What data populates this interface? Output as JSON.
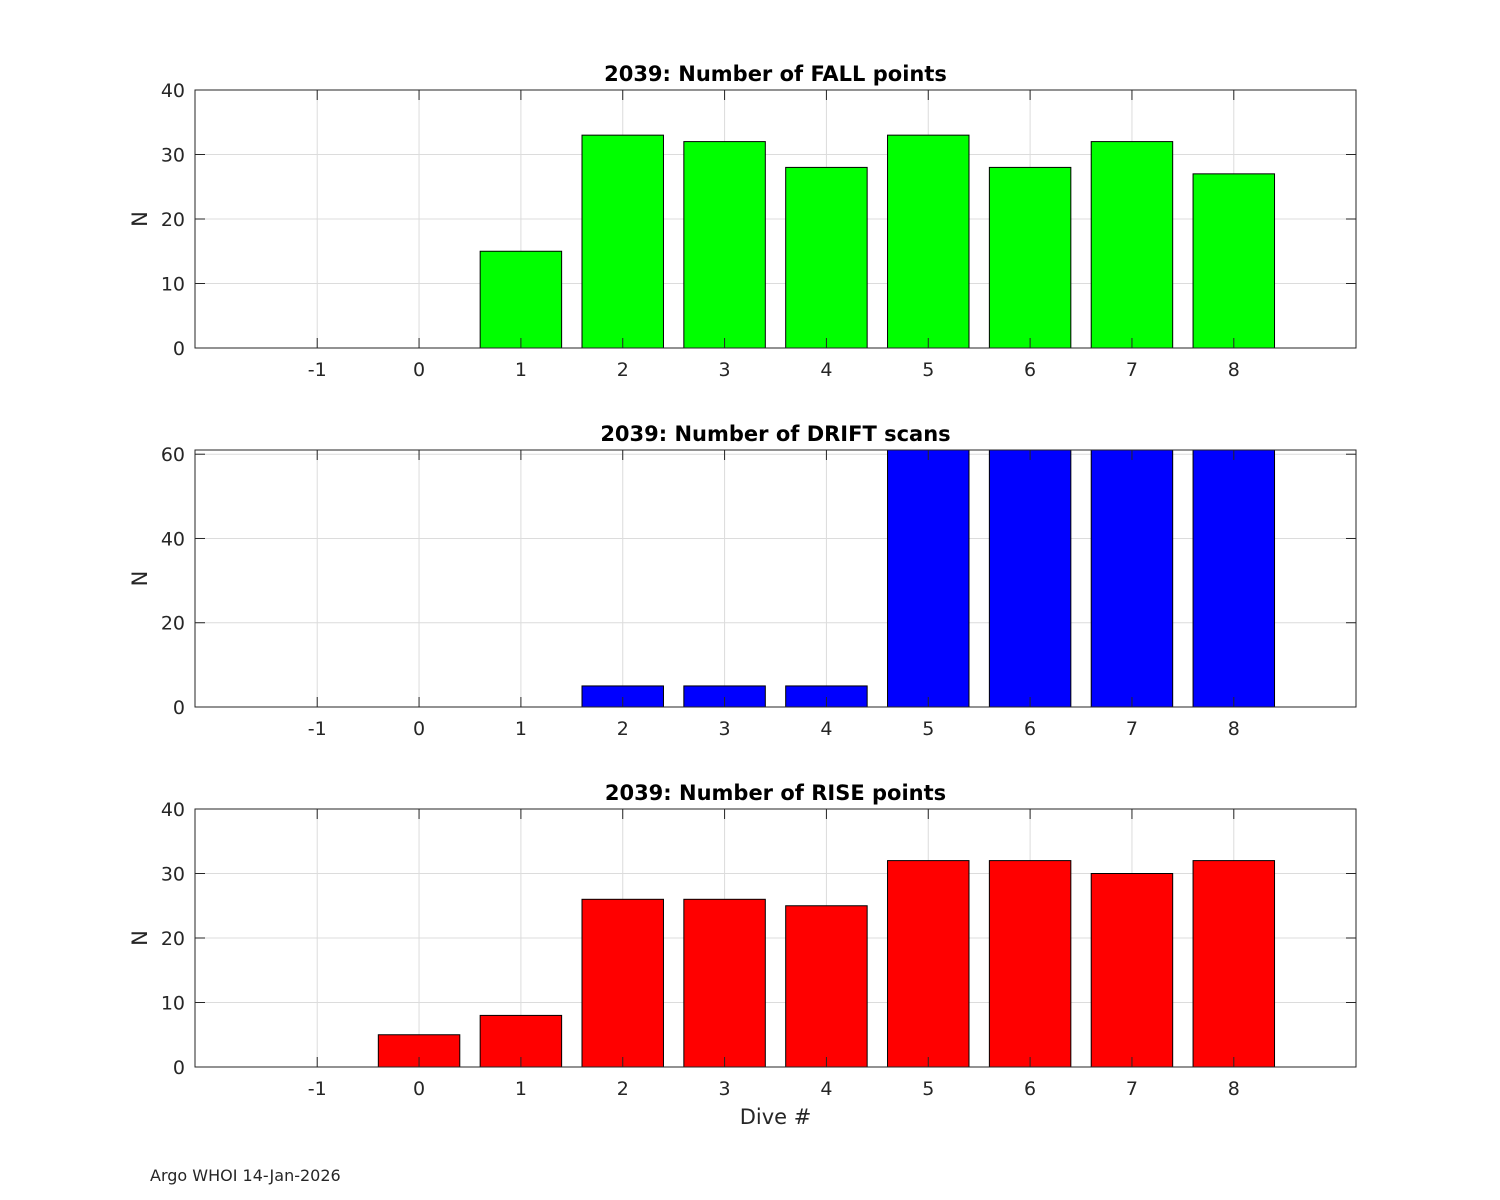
{
  "figure": {
    "footer": "Argo WHOI 14-Jan-2026"
  },
  "chart_data": [
    {
      "type": "bar",
      "title": "2039: Number of FALL points",
      "xlabel": "",
      "ylabel": "N",
      "categories": [
        -1,
        0,
        1,
        2,
        3,
        4,
        5,
        6,
        7,
        8
      ],
      "values": [
        0,
        0,
        15,
        33,
        32,
        28,
        33,
        28,
        32,
        27
      ],
      "xlim": [
        -2.2,
        9.2
      ],
      "ylim": [
        0,
        40
      ],
      "yticks": [
        0,
        10,
        20,
        30,
        40
      ],
      "grid": true,
      "color": "#00ff00"
    },
    {
      "type": "bar",
      "title": "2039: Number of DRIFT scans",
      "xlabel": "",
      "ylabel": "N",
      "categories": [
        -1,
        0,
        1,
        2,
        3,
        4,
        5,
        6,
        7,
        8
      ],
      "values": [
        0,
        0,
        0,
        5,
        5,
        5,
        61,
        61,
        61,
        61
      ],
      "xlim": [
        -2.2,
        9.2
      ],
      "ylim": [
        0,
        61
      ],
      "yticks": [
        0,
        20,
        40,
        60
      ],
      "grid": true,
      "color": "#0000ff"
    },
    {
      "type": "bar",
      "title": "2039: Number of RISE points",
      "xlabel": "Dive #",
      "ylabel": "N",
      "categories": [
        -1,
        0,
        1,
        2,
        3,
        4,
        5,
        6,
        7,
        8
      ],
      "values": [
        0,
        5,
        8,
        26,
        26,
        25,
        32,
        32,
        30,
        32
      ],
      "xlim": [
        -2.2,
        9.2
      ],
      "ylim": [
        0,
        40
      ],
      "yticks": [
        0,
        10,
        20,
        30,
        40
      ],
      "grid": true,
      "color": "#ff0000"
    }
  ]
}
